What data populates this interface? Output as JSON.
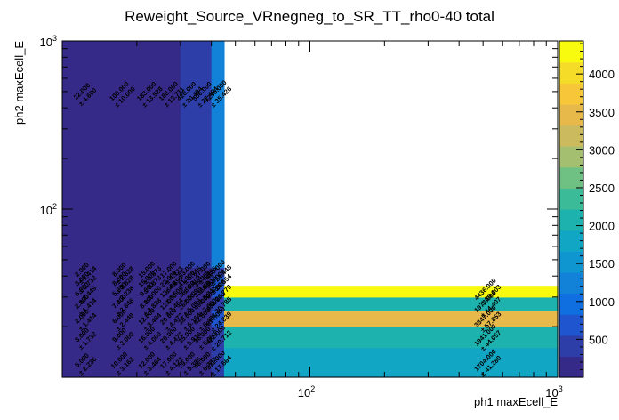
{
  "chart_data": {
    "type": "heatmap",
    "title": "Reweight_Source_VRnegneg_to_SR_TT_rho0-40 total",
    "xlabel": "ph1 maxEcell_E",
    "ylabel": "ph2 maxEcell_E",
    "x_scale": "log",
    "y_scale": "log",
    "xlim": [
      10,
      1000
    ],
    "ylim": [
      10,
      1000
    ],
    "x_edges": [
      10,
      15,
      20,
      25,
      30,
      35,
      40,
      45,
      1000
    ],
    "y_edges": [
      10,
      15,
      20,
      25,
      30,
      35,
      40,
      45,
      1000
    ],
    "x_tick_labels": [
      {
        "value": 100,
        "base": "10",
        "exp": "2"
      },
      {
        "value": 1000,
        "base": "10",
        "exp": "3"
      }
    ],
    "y_tick_labels": [
      {
        "value": 100,
        "base": "10",
        "exp": "2"
      },
      {
        "value": 1000,
        "base": "10",
        "exp": "3"
      }
    ],
    "zlim": [
      0,
      4436
    ],
    "z_tick_labels": [
      "500",
      "1000",
      "1500",
      "2000",
      "2500",
      "3000",
      "3500",
      "4000"
    ],
    "z_tick_values": [
      500,
      1000,
      1500,
      2000,
      2500,
      3000,
      3500,
      4000
    ],
    "palette": [
      "#352a87",
      "#2e3ea8",
      "#1f55cf",
      "#0f6ee0",
      "#1182d8",
      "#0f96d0",
      "#11a6c4",
      "#1db2ad",
      "#3bbb98",
      "#6ec083",
      "#a3bf6f",
      "#cbba5e",
      "#e7b94a",
      "#f8c739",
      "#f5dc28",
      "#f9fb0e"
    ],
    "cells": [
      {
        "x": 0,
        "y": 0,
        "value": 5,
        "label": "5.000",
        "error": "± 2.236"
      },
      {
        "x": 0,
        "y": 1,
        "value": 3,
        "label": "3.000",
        "error": "± 1.732"
      },
      {
        "x": 0,
        "y": 2,
        "value": 2,
        "label": "2.000",
        "error": "± 1.414"
      },
      {
        "x": 0,
        "y": 3,
        "value": 2,
        "label": "2.000",
        "error": "± 1.414"
      },
      {
        "x": 0,
        "y": 4,
        "value": 6,
        "label": "6.000",
        "error": "± 2.449"
      },
      {
        "x": 0,
        "y": 5,
        "value": 3,
        "label": "3.000",
        "error": "± 1.732"
      },
      {
        "x": 0,
        "y": 6,
        "value": 2,
        "label": "2.000",
        "error": "± 1.414"
      },
      {
        "x": 0,
        "y": 7,
        "value": 22,
        "label": "22.000",
        "error": "± 4.690"
      },
      {
        "x": 1,
        "y": 0,
        "value": 10,
        "label": "10.000",
        "error": "± 3.162"
      },
      {
        "x": 1,
        "y": 1,
        "value": 9,
        "label": "9.000",
        "error": "± 3.000"
      },
      {
        "x": 1,
        "y": 2,
        "value": 6,
        "label": "6.000",
        "error": "± 2.449"
      },
      {
        "x": 1,
        "y": 3,
        "value": 7,
        "label": "7.000",
        "error": "± 2.646"
      },
      {
        "x": 1,
        "y": 4,
        "value": 5,
        "label": "5.000",
        "error": "± 2.236"
      },
      {
        "x": 1,
        "y": 5,
        "value": 8,
        "label": "8.000",
        "error": "± 2.828"
      },
      {
        "x": 1,
        "y": 6,
        "value": 8,
        "label": "8.000",
        "error": "± 2.828"
      },
      {
        "x": 1,
        "y": 7,
        "value": 100,
        "label": "100.000",
        "error": "± 10.000"
      },
      {
        "x": 2,
        "y": 0,
        "value": 12,
        "label": "12.000",
        "error": "± 3.464"
      },
      {
        "x": 2,
        "y": 1,
        "value": 16,
        "label": "16.000",
        "error": "± 4.000"
      },
      {
        "x": 2,
        "y": 2,
        "value": 12,
        "label": "12.000",
        "error": "± 3.464"
      },
      {
        "x": 2,
        "y": 3,
        "value": 8,
        "label": "8.000",
        "error": "± 2.828"
      },
      {
        "x": 2,
        "y": 4,
        "value": 9,
        "label": "9.000",
        "error": "± 3.000"
      },
      {
        "x": 2,
        "y": 5,
        "value": 15,
        "label": "15.000",
        "error": "± 3.873"
      },
      {
        "x": 2,
        "y": 6,
        "value": 15,
        "label": "15.000",
        "error": "± 3.873"
      },
      {
        "x": 2,
        "y": 7,
        "value": 183,
        "label": "183.000",
        "error": "± 13.528"
      },
      {
        "x": 3,
        "y": 0,
        "value": 17,
        "label": "17.000",
        "error": "± 4.123"
      },
      {
        "x": 3,
        "y": 1,
        "value": 20,
        "label": "20.000",
        "error": "± 4.472"
      },
      {
        "x": 3,
        "y": 2,
        "value": 20,
        "label": "20.000",
        "error": "± 4.472"
      },
      {
        "x": 3,
        "y": 3,
        "value": 12,
        "label": "12.000",
        "error": "± 3.464"
      },
      {
        "x": 3,
        "y": 4,
        "value": 13,
        "label": "13.000",
        "error": "± 3.606"
      },
      {
        "x": 3,
        "y": 5,
        "value": 22,
        "label": "22.000",
        "error": "± 4.690"
      },
      {
        "x": 3,
        "y": 6,
        "value": 17,
        "label": "17.000",
        "error": "± 4.123"
      },
      {
        "x": 3,
        "y": 7,
        "value": 188,
        "label": "188.000",
        "error": "± 13.711"
      },
      {
        "x": 4,
        "y": 0,
        "value": 29,
        "label": "29.000",
        "error": "± 5.385"
      },
      {
        "x": 4,
        "y": 1,
        "value": 35,
        "label": "35.000",
        "error": "± 5.916"
      },
      {
        "x": 4,
        "y": 2,
        "value": 38,
        "label": "38.000",
        "error": "± 6.164"
      },
      {
        "x": 4,
        "y": 3,
        "value": 26,
        "label": "26.000",
        "error": "± 5.099"
      },
      {
        "x": 4,
        "y": 4,
        "value": 26,
        "label": "26.000",
        "error": "± 5.099"
      },
      {
        "x": 4,
        "y": 5,
        "value": 41,
        "label": "41.000",
        "error": "± 6.403"
      },
      {
        "x": 4,
        "y": 6,
        "value": 33,
        "label": "33.000",
        "error": "± 5.745"
      },
      {
        "x": 4,
        "y": 7,
        "value": 420,
        "label": "420.000",
        "error": "± 20.494"
      },
      {
        "x": 5,
        "y": 0,
        "value": 46,
        "label": "46.000",
        "error": "± 6.782"
      },
      {
        "x": 5,
        "y": 1,
        "value": 36,
        "label": "36.000",
        "error": "± 6.000"
      },
      {
        "x": 5,
        "y": 2,
        "value": 42,
        "label": "42.000",
        "error": "± 6.481"
      },
      {
        "x": 5,
        "y": 3,
        "value": 49,
        "label": "49.000",
        "error": "± 7.000"
      },
      {
        "x": 5,
        "y": 4,
        "value": 33,
        "label": "33.000",
        "error": "± 5.745"
      },
      {
        "x": 5,
        "y": 5,
        "value": 35,
        "label": "35.000",
        "error": "± 5.916"
      },
      {
        "x": 5,
        "y": 6,
        "value": 27,
        "label": "27.000",
        "error": "± 5.196"
      },
      {
        "x": 5,
        "y": 7,
        "value": 506,
        "label": "506.000",
        "error": "± 22.494"
      },
      {
        "x": 6,
        "y": 0,
        "value": 311,
        "label": "311.000",
        "error": "± 17.664"
      },
      {
        "x": 6,
        "y": 1,
        "value": 422,
        "label": "422.000",
        "error": "± 20.712"
      },
      {
        "x": 6,
        "y": 2,
        "value": 617,
        "label": "617.000",
        "error": "± 24.839"
      },
      {
        "x": 6,
        "y": 3,
        "value": 432,
        "label": "432.000",
        "error": "± 20.785"
      },
      {
        "x": 6,
        "y": 4,
        "value": 614,
        "label": "614.000",
        "error": "± 24.779"
      },
      {
        "x": 6,
        "y": 5,
        "value": 653,
        "label": "653.000",
        "error": "± 25.554"
      },
      {
        "x": 6,
        "y": 6,
        "value": 460,
        "label": "460.000",
        "error": "± 21.448"
      },
      {
        "x": 6,
        "y": 7,
        "value": 1255,
        "label": "1255.000",
        "error": "± 35.426"
      },
      {
        "x": 7,
        "y": 0,
        "value": 1704,
        "label": "1704.000",
        "error": "± 41.280"
      },
      {
        "x": 7,
        "y": 1,
        "value": 1941,
        "label": "1941.000",
        "error": "± 44.057"
      },
      {
        "x": 7,
        "y": 2,
        "value": 3347,
        "label": "3347.000",
        "error": "± 57.853"
      },
      {
        "x": 7,
        "y": 3,
        "value": 1972,
        "label": "1972.000",
        "error": "± 44.407"
      },
      {
        "x": 7,
        "y": 4,
        "value": 4436,
        "label": "4436.000",
        "error": "± 66.603"
      }
    ]
  }
}
